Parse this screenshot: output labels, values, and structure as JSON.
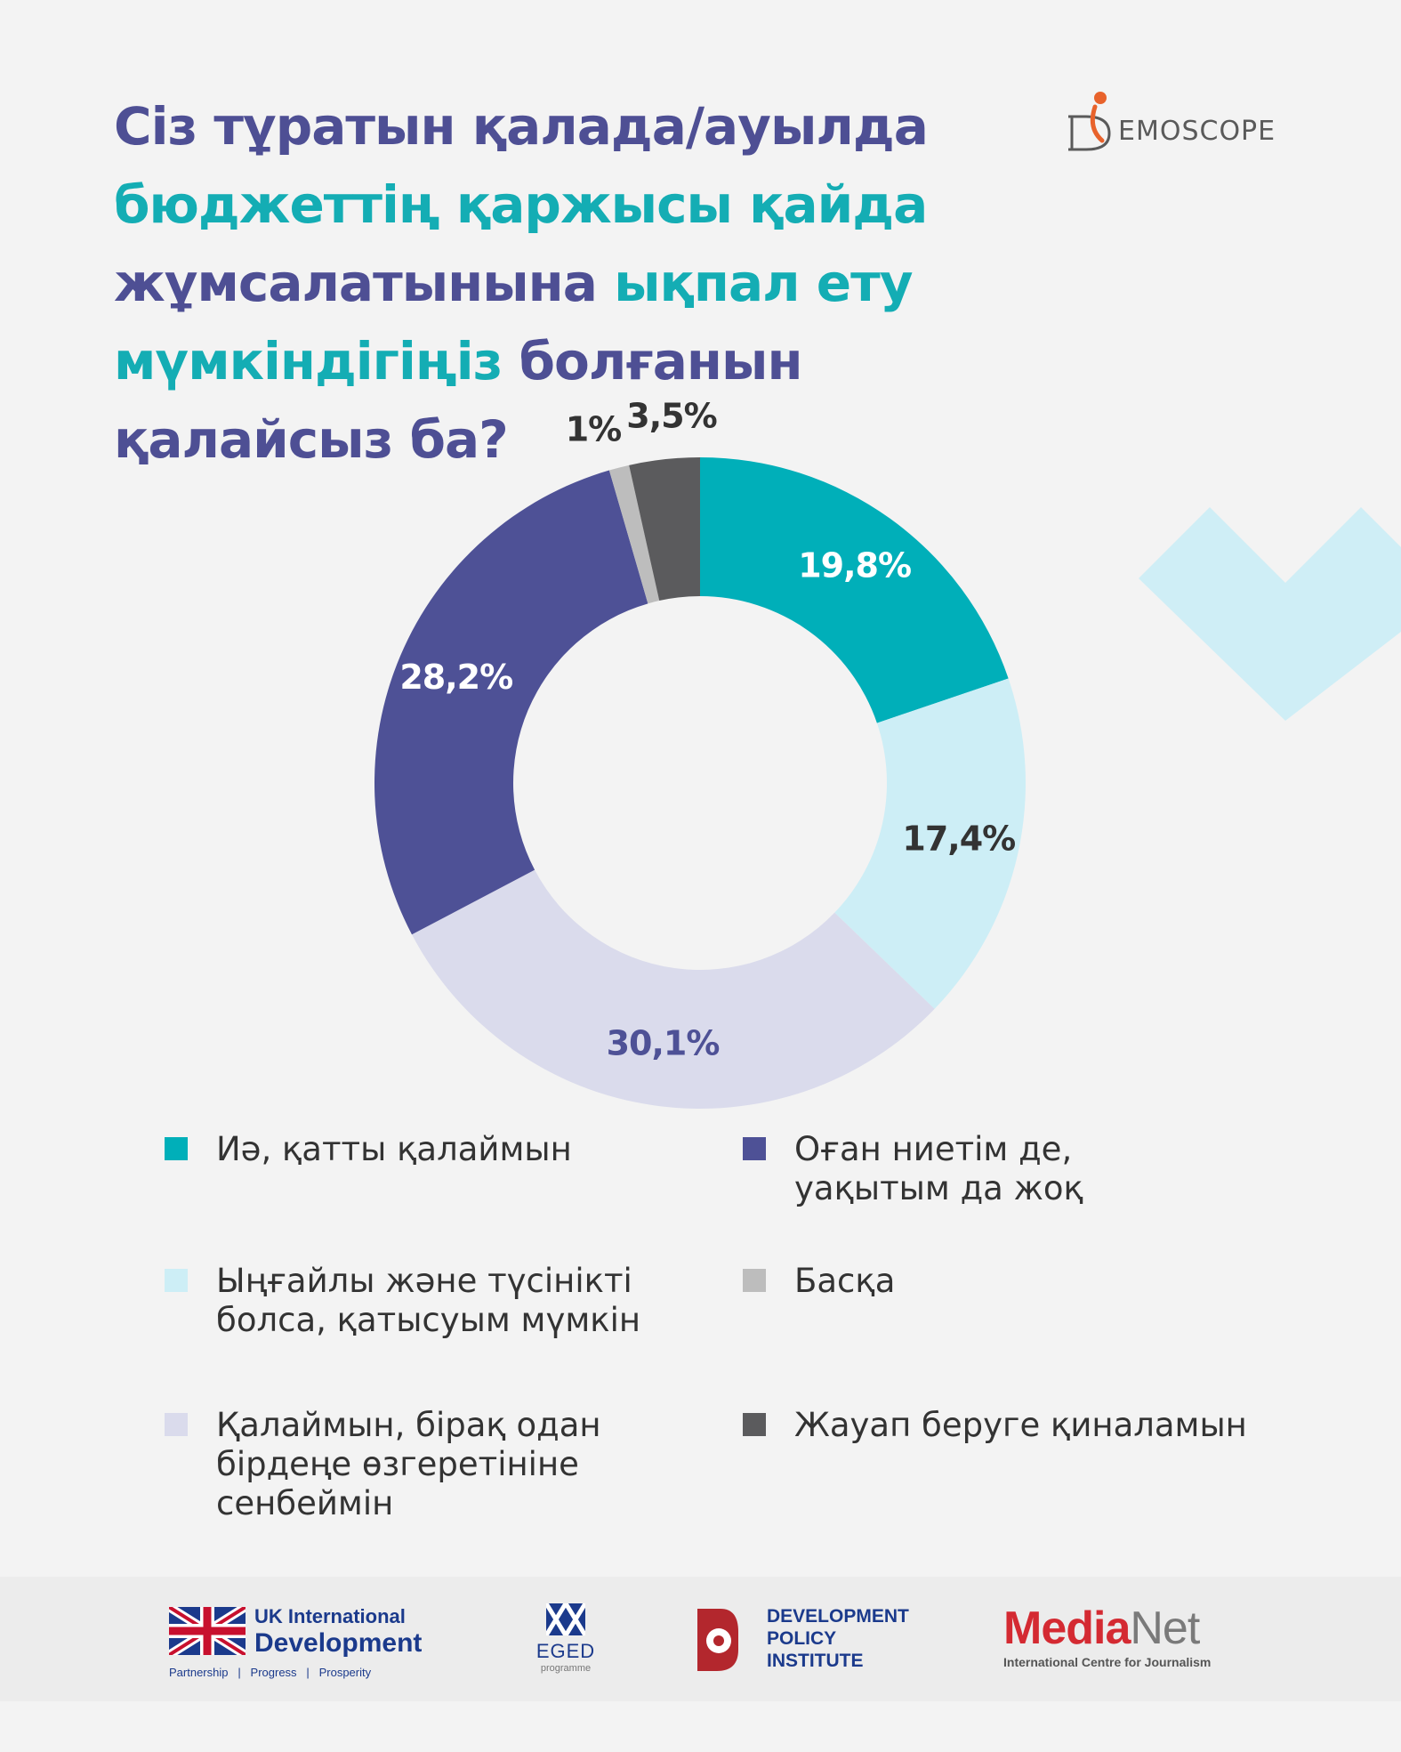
{
  "title": {
    "line1": "Сіз тұратын қалада/ауылда",
    "line2": "бюджеттің қаржысы қайда",
    "line3_a": "жұмсалатынына ",
    "line3_b": "ықпал ету",
    "line4_a": "мүмкіндігіңіз",
    "line4_b": " болғанын қалайсыз ба?"
  },
  "brand": {
    "name": "EMOSCOPE"
  },
  "chart_data": {
    "type": "pie",
    "categories": [
      "Иә, қатты қалаймын",
      "Ыңғайлы және түсінікті болса, қатысуым мүмкін",
      "Қалаймын, бірақ одан бірдеңе өзгеретініне сенбеймін",
      "Оған ниетім де, уақытым да жоқ",
      "Басқа",
      "Жауап беруге қиналамын"
    ],
    "values": [
      19.8,
      17.4,
      30.1,
      28.2,
      1,
      3.5
    ],
    "data_labels": [
      "19,8%",
      "17,4%",
      "30,1%",
      "28,2%",
      "1%",
      "3,5%"
    ],
    "colors": [
      "#00afb9",
      "#cdeef6",
      "#dadbec",
      "#4e5196",
      "#bdbdbd",
      "#5b5b5d"
    ],
    "label_colors": [
      "#ffffff",
      "#333333",
      "#4e5196",
      "#ffffff",
      "#333333",
      "#333333"
    ],
    "donut": true
  },
  "legend": [
    {
      "text": "Иә, қатты қалаймын",
      "color": "#00afb9"
    },
    {
      "text": "Оған ниетім де,\nуақытым да жоқ",
      "color": "#4e5196"
    },
    {
      "text": "Ыңғайлы және түсінікті\nболса, қатысуым мүмкін",
      "color": "#cdeef6"
    },
    {
      "text": "Басқа",
      "color": "#bdbdbd"
    },
    {
      "text": "Қалаймын, бірақ одан\nбірдеңе өзгеретініне\nсенбеймін",
      "color": "#dadbec"
    },
    {
      "text": "Жауап беруге қиналамын",
      "color": "#5b5b5d"
    }
  ],
  "footer": {
    "uk": {
      "line1": "UK International",
      "line2": "Development",
      "tagline": "Partnership   |   Progress   |   Prosperity"
    },
    "eged": {
      "name": "EGED",
      "sub": "programme"
    },
    "dpi": {
      "text": "DEVELOPMENT\nPOLICY\nINSTITUTE"
    },
    "medianet": {
      "media": "Media",
      "net": "Net",
      "sub": "International Centre for Journalism"
    }
  }
}
